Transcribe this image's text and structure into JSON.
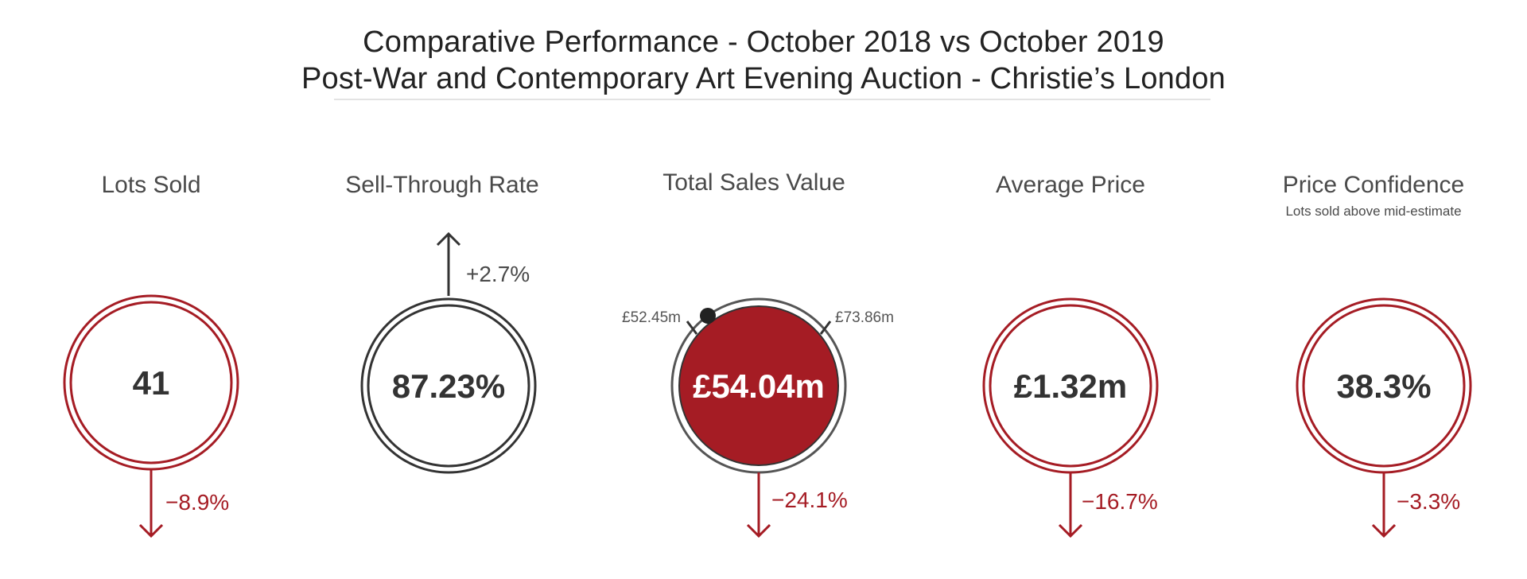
{
  "header": {
    "title_line1": "Comparative Performance - October 2018 vs October 2019",
    "title_line2": "Post-War and Contemporary Art Evening Auction - Christie’s London"
  },
  "colors": {
    "red": "#a51c24",
    "dark": "#333333",
    "text": "#4a4a4a"
  },
  "metrics": [
    {
      "title": "Lots Sold",
      "subtitle": "",
      "value": "41",
      "change": "−8.9%",
      "direction": "down",
      "style": "red-outline"
    },
    {
      "title": "Sell-Through Rate",
      "subtitle": "",
      "value": "87.23%",
      "change": "+2.7%",
      "direction": "up",
      "style": "dark-outline"
    },
    {
      "title": "Total Sales Value",
      "subtitle": "",
      "value": "£54.04m",
      "change": "−24.1%",
      "direction": "down",
      "style": "red-filled",
      "low_estimate": "£52.45m",
      "high_estimate": "£73.86m"
    },
    {
      "title": "Average Price",
      "subtitle": "",
      "value": "£1.32m",
      "change": "−16.7%",
      "direction": "down",
      "style": "red-outline"
    },
    {
      "title": "Price Confidence",
      "subtitle": "Lots sold above mid-estimate",
      "value": "38.3%",
      "change": "−3.3%",
      "direction": "down",
      "style": "red-outline"
    }
  ]
}
